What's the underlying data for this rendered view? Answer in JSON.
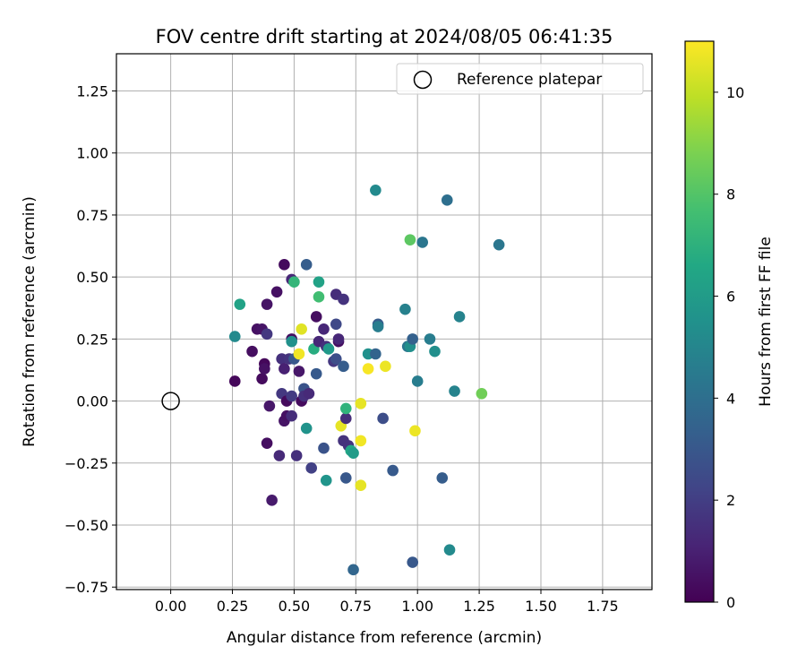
{
  "chart_data": {
    "type": "scatter",
    "title": "FOV centre drift starting at 2024/08/05 06:41:35",
    "xlabel": "Angular distance from reference (arcmin)",
    "ylabel": "Rotation from reference (arcmin)",
    "xlim": [
      -0.22,
      1.95
    ],
    "ylim": [
      -0.76,
      1.4
    ],
    "xticks": [
      0.0,
      0.25,
      0.5,
      0.75,
      1.0,
      1.25,
      1.5,
      1.75
    ],
    "xtick_labels": [
      "0.00",
      "0.25",
      "0.50",
      "0.75",
      "1.00",
      "1.25",
      "1.50",
      "1.75"
    ],
    "yticks": [
      -0.75,
      -0.5,
      -0.25,
      0.0,
      0.25,
      0.5,
      0.75,
      1.0,
      1.25
    ],
    "ytick_labels": [
      "−0.75",
      "−0.50",
      "−0.25",
      "0.00",
      "0.25",
      "0.50",
      "0.75",
      "1.00",
      "1.25"
    ],
    "grid": true,
    "legend": {
      "placement": "top-right",
      "entries": [
        {
          "label": "Reference platepar",
          "marker": "open-circle"
        }
      ]
    },
    "reference_point": {
      "x": 0.0,
      "y": 0.0
    },
    "colorbar": {
      "label": "Hours from first FF file",
      "colormap": "viridis",
      "range": [
        0,
        11
      ],
      "ticks": [
        0,
        2,
        4,
        6,
        8,
        10
      ],
      "tick_labels": [
        "0",
        "2",
        "4",
        "6",
        "8",
        "10"
      ]
    },
    "points": [
      {
        "x": 0.26,
        "y": 0.08,
        "h": 0.2
      },
      {
        "x": 0.33,
        "y": 0.2,
        "h": 0.4
      },
      {
        "x": 0.35,
        "y": 0.29,
        "h": 0.5
      },
      {
        "x": 0.37,
        "y": 0.29,
        "h": 0.6
      },
      {
        "x": 0.37,
        "y": 0.09,
        "h": 0.3
      },
      {
        "x": 0.38,
        "y": 0.15,
        "h": 0.2
      },
      {
        "x": 0.38,
        "y": 0.13,
        "h": 0.5
      },
      {
        "x": 0.39,
        "y": -0.17,
        "h": 0.4
      },
      {
        "x": 0.39,
        "y": 0.39,
        "h": 0.6
      },
      {
        "x": 0.39,
        "y": 0.27,
        "h": 1.8
      },
      {
        "x": 0.4,
        "y": -0.02,
        "h": 0.7
      },
      {
        "x": 0.41,
        "y": -0.4,
        "h": 0.8
      },
      {
        "x": 0.43,
        "y": 0.44,
        "h": 0.5
      },
      {
        "x": 0.44,
        "y": -0.22,
        "h": 1.3
      },
      {
        "x": 0.45,
        "y": 0.17,
        "h": 1.5
      },
      {
        "x": 0.45,
        "y": 0.03,
        "h": 1.8
      },
      {
        "x": 0.46,
        "y": 0.55,
        "h": 0.3
      },
      {
        "x": 0.46,
        "y": -0.08,
        "h": 0.6
      },
      {
        "x": 0.46,
        "y": 0.13,
        "h": 1.0
      },
      {
        "x": 0.47,
        "y": -0.06,
        "h": 0.5
      },
      {
        "x": 0.47,
        "y": 0.0,
        "h": 0.3
      },
      {
        "x": 0.48,
        "y": 0.17,
        "h": 1.6
      },
      {
        "x": 0.49,
        "y": 0.49,
        "h": 1.2
      },
      {
        "x": 0.49,
        "y": 0.25,
        "h": 0.4
      },
      {
        "x": 0.49,
        "y": -0.06,
        "h": 1.4
      },
      {
        "x": 0.49,
        "y": 0.02,
        "h": 1.9
      },
      {
        "x": 0.5,
        "y": 0.48,
        "h": 7.2
      },
      {
        "x": 0.49,
        "y": 0.24,
        "h": 5.5
      },
      {
        "x": 0.5,
        "y": 0.17,
        "h": 3.0
      },
      {
        "x": 0.51,
        "y": -0.22,
        "h": 1.5
      },
      {
        "x": 0.52,
        "y": 0.19,
        "h": 10.8
      },
      {
        "x": 0.52,
        "y": 0.12,
        "h": 0.7
      },
      {
        "x": 0.53,
        "y": 0.29,
        "h": 10.5
      },
      {
        "x": 0.53,
        "y": 0.0,
        "h": 0.3
      },
      {
        "x": 0.54,
        "y": 0.05,
        "h": 2.8
      },
      {
        "x": 0.54,
        "y": 0.02,
        "h": 1.5
      },
      {
        "x": 0.55,
        "y": 0.55,
        "h": 3.2
      },
      {
        "x": 0.55,
        "y": -0.11,
        "h": 5.6
      },
      {
        "x": 0.56,
        "y": 0.03,
        "h": 1.3
      },
      {
        "x": 0.57,
        "y": -0.27,
        "h": 2.1
      },
      {
        "x": 0.58,
        "y": 0.21,
        "h": 6.8
      },
      {
        "x": 0.59,
        "y": 0.34,
        "h": 0.4
      },
      {
        "x": 0.59,
        "y": 0.11,
        "h": 3.1
      },
      {
        "x": 0.6,
        "y": 0.48,
        "h": 6.3
      },
      {
        "x": 0.6,
        "y": 0.42,
        "h": 7.6
      },
      {
        "x": 0.6,
        "y": 0.24,
        "h": 1.2
      },
      {
        "x": 0.62,
        "y": 0.29,
        "h": 1.2
      },
      {
        "x": 0.62,
        "y": -0.19,
        "h": 2.8
      },
      {
        "x": 0.63,
        "y": -0.32,
        "h": 5.7
      },
      {
        "x": 0.63,
        "y": 0.22,
        "h": 1.5
      },
      {
        "x": 0.64,
        "y": 0.21,
        "h": 5.9
      },
      {
        "x": 0.66,
        "y": 0.16,
        "h": 1.8
      },
      {
        "x": 0.67,
        "y": 0.17,
        "h": 2.6
      },
      {
        "x": 0.67,
        "y": 0.43,
        "h": 1.4
      },
      {
        "x": 0.67,
        "y": 0.31,
        "h": 2.4
      },
      {
        "x": 0.68,
        "y": 0.24,
        "h": 0.4
      },
      {
        "x": 0.68,
        "y": 0.25,
        "h": 1.2
      },
      {
        "x": 0.69,
        "y": -0.1,
        "h": 10.6
      },
      {
        "x": 0.7,
        "y": 0.41,
        "h": 1.6
      },
      {
        "x": 0.7,
        "y": 0.14,
        "h": 3.2
      },
      {
        "x": 0.7,
        "y": -0.16,
        "h": 1.6
      },
      {
        "x": 0.71,
        "y": -0.07,
        "h": 1.4
      },
      {
        "x": 0.71,
        "y": -0.03,
        "h": 7.1
      },
      {
        "x": 0.71,
        "y": -0.31,
        "h": 3.0
      },
      {
        "x": 0.72,
        "y": -0.18,
        "h": 1.6
      },
      {
        "x": 0.73,
        "y": -0.2,
        "h": 6.5
      },
      {
        "x": 0.74,
        "y": -0.21,
        "h": 6.0
      },
      {
        "x": 0.74,
        "y": -0.68,
        "h": 3.6
      },
      {
        "x": 0.77,
        "y": -0.01,
        "h": 10.6
      },
      {
        "x": 0.77,
        "y": -0.16,
        "h": 10.8
      },
      {
        "x": 0.77,
        "y": -0.34,
        "h": 10.6
      },
      {
        "x": 0.8,
        "y": 0.19,
        "h": 5.5
      },
      {
        "x": 0.8,
        "y": 0.13,
        "h": 10.9
      },
      {
        "x": 0.83,
        "y": 0.85,
        "h": 5.2
      },
      {
        "x": 0.83,
        "y": 0.19,
        "h": 3.5
      },
      {
        "x": 0.84,
        "y": 0.31,
        "h": 3.2
      },
      {
        "x": 0.84,
        "y": 0.3,
        "h": 4.6
      },
      {
        "x": 0.86,
        "y": -0.07,
        "h": 2.6
      },
      {
        "x": 0.87,
        "y": 0.14,
        "h": 10.7
      },
      {
        "x": 0.9,
        "y": -0.28,
        "h": 3.1
      },
      {
        "x": 0.95,
        "y": 0.37,
        "h": 4.8
      },
      {
        "x": 0.96,
        "y": 0.22,
        "h": 4.3
      },
      {
        "x": 0.97,
        "y": 0.22,
        "h": 5.4
      },
      {
        "x": 0.97,
        "y": 0.65,
        "h": 8.2
      },
      {
        "x": 0.98,
        "y": 0.25,
        "h": 3.4
      },
      {
        "x": 0.98,
        "y": -0.65,
        "h": 3.0
      },
      {
        "x": 0.99,
        "y": -0.12,
        "h": 10.7
      },
      {
        "x": 1.0,
        "y": 0.08,
        "h": 4.6
      },
      {
        "x": 1.02,
        "y": 0.64,
        "h": 4.3
      },
      {
        "x": 1.05,
        "y": 0.25,
        "h": 4.6
      },
      {
        "x": 1.07,
        "y": 0.2,
        "h": 5.4
      },
      {
        "x": 1.1,
        "y": -0.31,
        "h": 3.2
      },
      {
        "x": 1.12,
        "y": 0.81,
        "h": 4.0
      },
      {
        "x": 1.13,
        "y": -0.6,
        "h": 5.2
      },
      {
        "x": 1.15,
        "y": 0.04,
        "h": 4.9
      },
      {
        "x": 1.17,
        "y": 0.34,
        "h": 4.9
      },
      {
        "x": 1.26,
        "y": 0.03,
        "h": 8.6
      },
      {
        "x": 1.33,
        "y": 0.63,
        "h": 4.3
      },
      {
        "x": 0.26,
        "y": 0.26,
        "h": 5.2
      },
      {
        "x": 0.28,
        "y": 0.39,
        "h": 6.3
      }
    ]
  }
}
